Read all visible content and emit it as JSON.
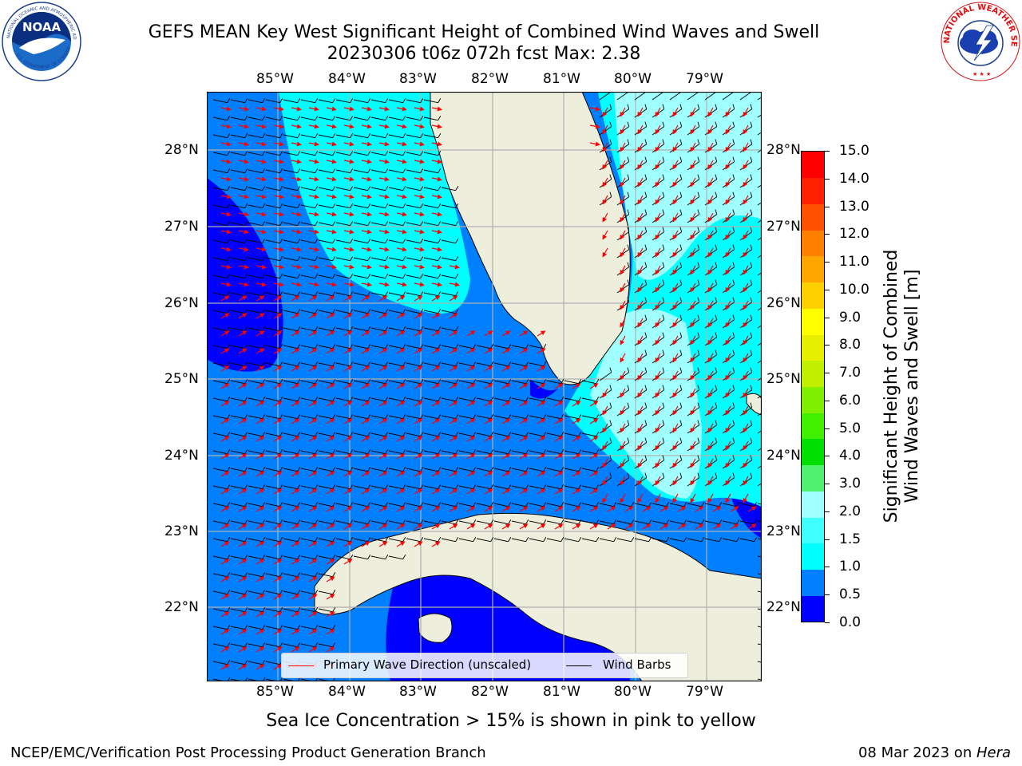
{
  "title_line1": "GEFS MEAN Key West Significant Height of Combined Wind Waves and Swell",
  "title_line2": "20230306 t06z 072h fcst   Max: 2.38",
  "lon_labels": [
    "85°W",
    "84°W",
    "83°W",
    "82°W",
    "81°W",
    "80°W",
    "79°W"
  ],
  "lat_labels": [
    "28°N",
    "27°N",
    "26°N",
    "25°N",
    "24°N",
    "23°N",
    "22°N"
  ],
  "colorbar": {
    "label_line1": "Significant Height of Combined",
    "label_line2": "Wind Waves and Swell [m]",
    "ticks": [
      "15.0",
      "14.0",
      "13.0",
      "12.0",
      "11.0",
      "10.0",
      "9.0",
      "8.0",
      "7.0",
      "6.0",
      "5.0",
      "4.0",
      "3.0",
      "2.0",
      "1.5",
      "1.0",
      "0.5",
      "0.0"
    ],
    "colors": [
      "#0000ff",
      "#0080ff",
      "#00ffff",
      "#40ffff",
      "#a0ffff",
      "#50f070",
      "#00e000",
      "#40f000",
      "#80f000",
      "#c0f000",
      "#e8f000",
      "#ffff00",
      "#ffd000",
      "#ffa500",
      "#ff8000",
      "#ff5000",
      "#ff2000",
      "#ff0000"
    ]
  },
  "legend": {
    "wave_label": "Primary Wave Direction (unscaled)",
    "barb_label": "Wind Barbs"
  },
  "bottom_note": "Sea Ice Concentration > 15% is shown in pink to yellow",
  "footer_left": "NCEP/EMC/Verification Post Processing Product Generation Branch",
  "footer_right_prefix": "08 Mar 2023 on ",
  "footer_right_host": "Hera",
  "logos": {
    "noaa_text": "NOAA",
    "nws_ring_text": "NATIONAL WEATHER SERVICE"
  },
  "colors": {
    "land": "#eeeedc",
    "wave_arrow": "#ff0000",
    "wind_barb": "#000000",
    "grid": "#b0b0b0"
  }
}
